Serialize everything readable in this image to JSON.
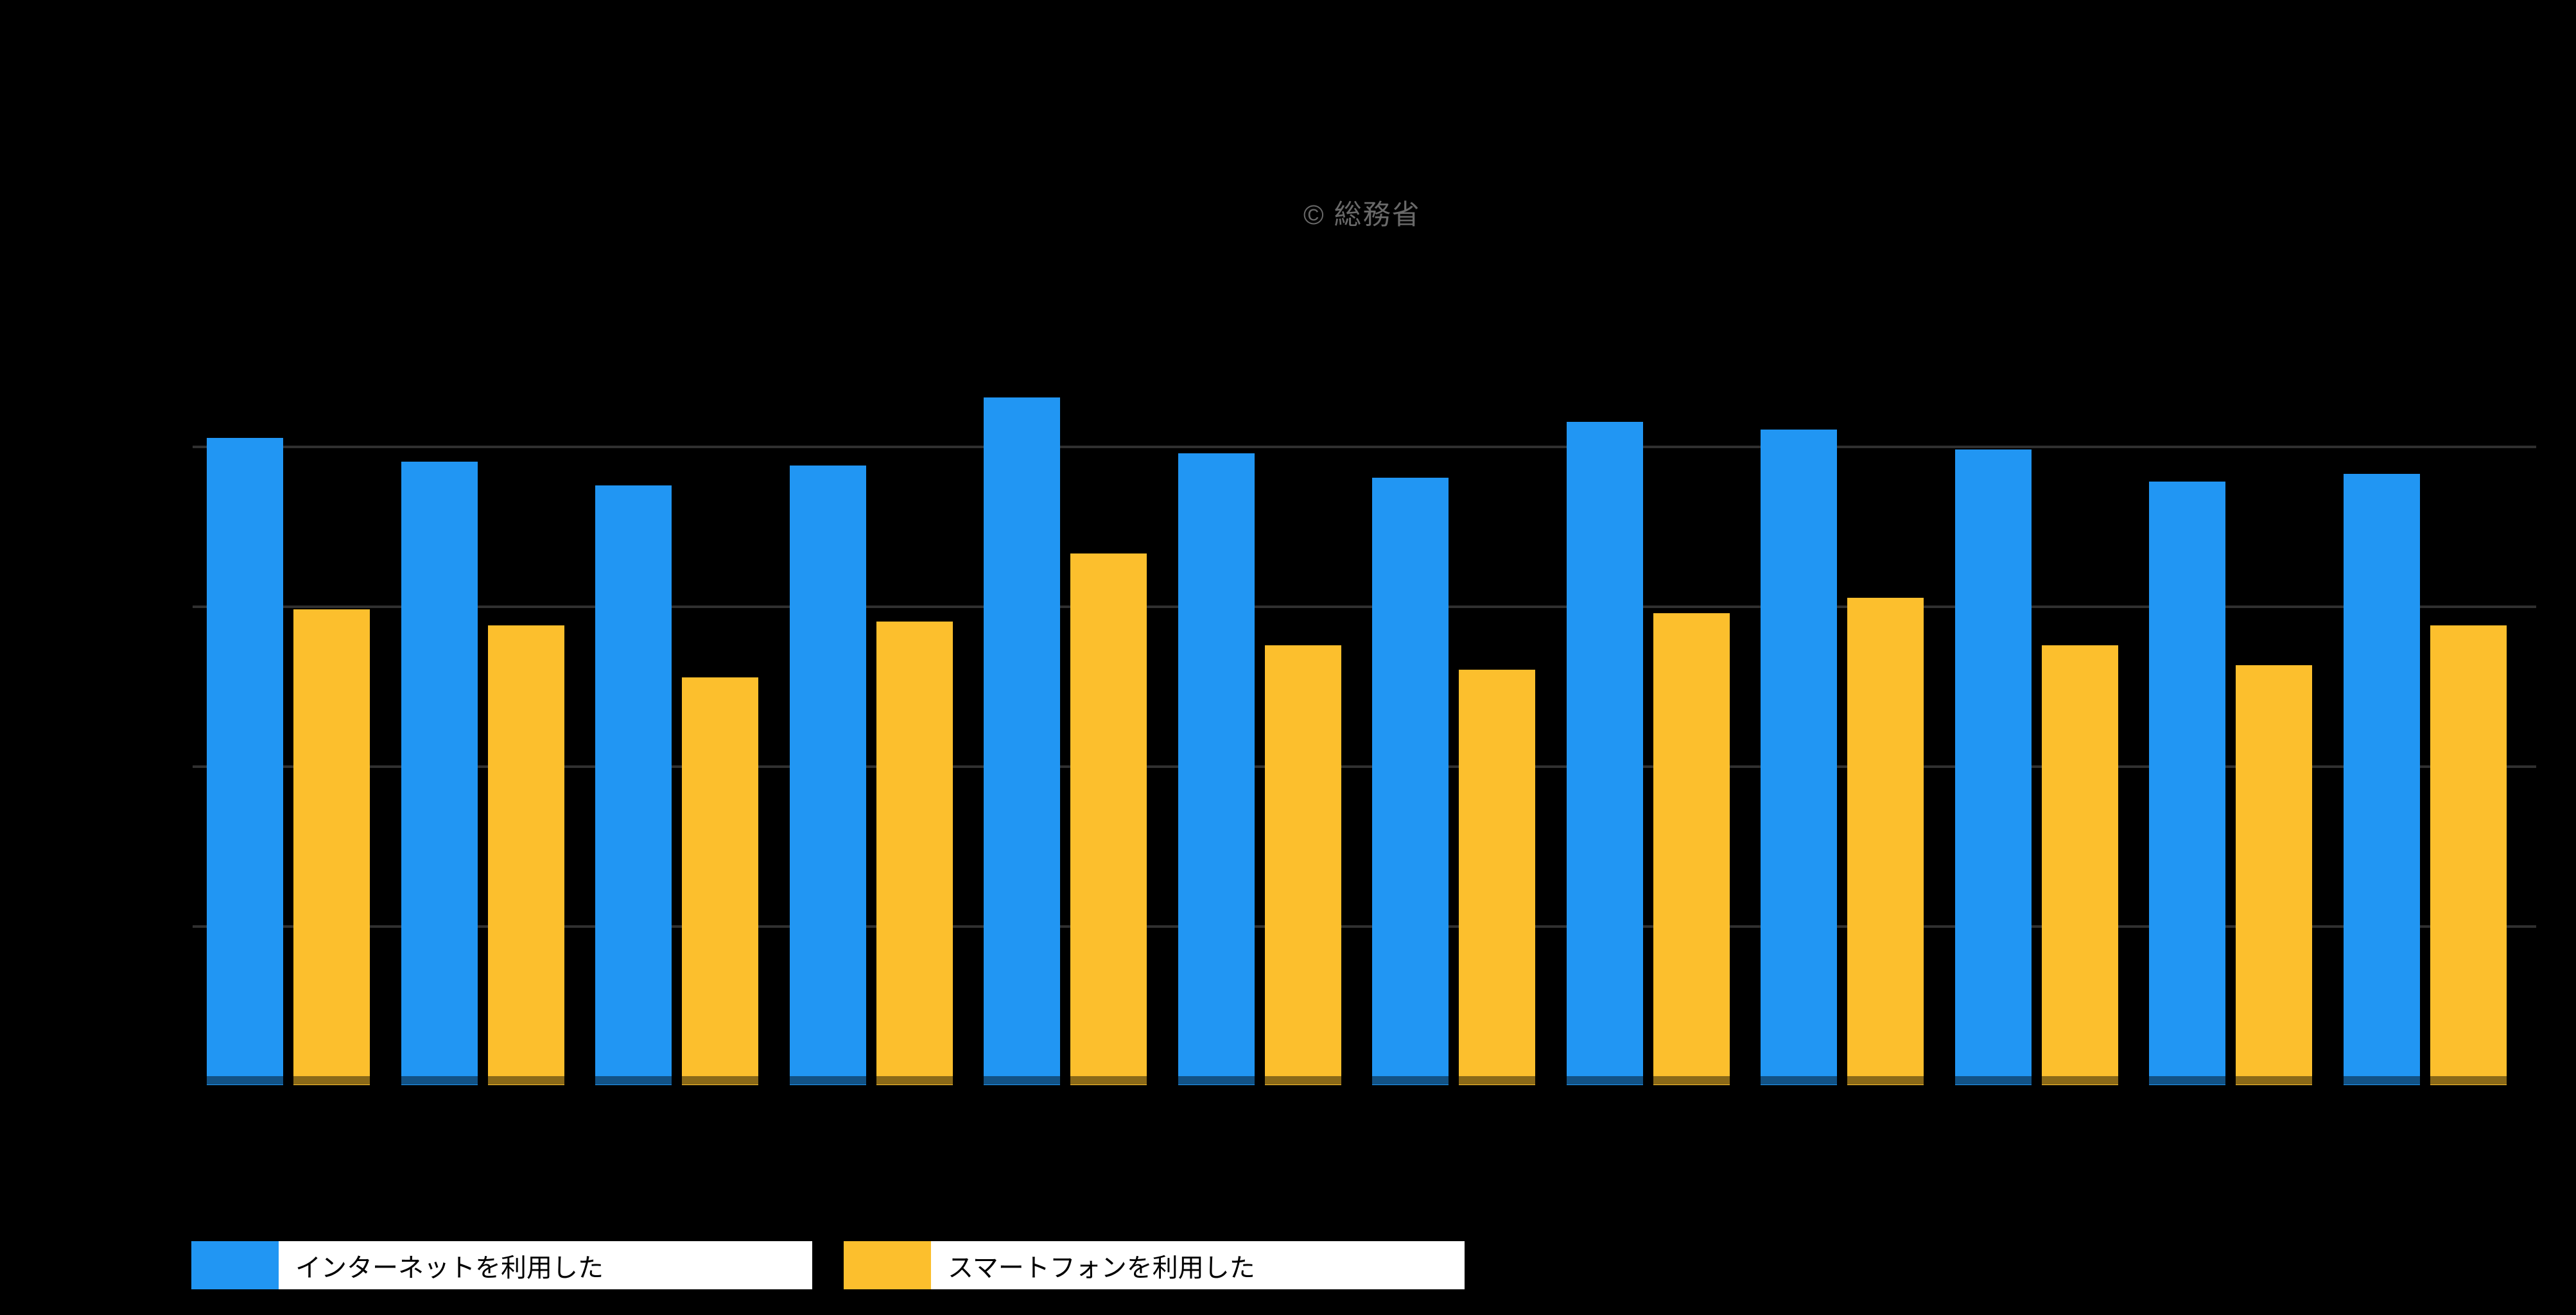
{
  "watermark": {
    "text": "© 総務省",
    "color": "#696969"
  },
  "legend": {
    "items": [
      {
        "label": "インターネットを利用した",
        "color": "#2196F3"
      },
      {
        "label": "スマートフォンを利用した",
        "color": "#FCBF2D"
      }
    ],
    "position": "bottom-left"
  },
  "chart_data": {
    "type": "bar",
    "title": "",
    "xlabel": "",
    "ylabel": "",
    "unit": "%",
    "ylim": [
      0,
      100
    ],
    "gridline_values": [
      20,
      40,
      60,
      80
    ],
    "axis_tick_labels_visible": false,
    "background": "#000000",
    "categories": [
      "",
      "",
      "",
      "",
      "",
      "",
      "",
      "",
      "",
      "",
      "",
      ""
    ],
    "series": [
      {
        "name": "インターネットを利用した",
        "key": "internet",
        "color": "#2196F3",
        "values": [
          81.0,
          78.0,
          75.0,
          77.5,
          86.0,
          79.0,
          76.0,
          83.0,
          82.0,
          79.5,
          75.5,
          76.5
        ]
      },
      {
        "name": "スマートフォンを利用した",
        "key": "smartphone",
        "color": "#FCBF2D",
        "values": [
          59.5,
          57.5,
          51.0,
          58.0,
          66.5,
          55.0,
          52.0,
          59.0,
          61.0,
          55.0,
          52.5,
          57.5
        ]
      }
    ],
    "legend_entries": [
      "インターネットを利用した",
      "スマートフォンを利用した"
    ]
  }
}
